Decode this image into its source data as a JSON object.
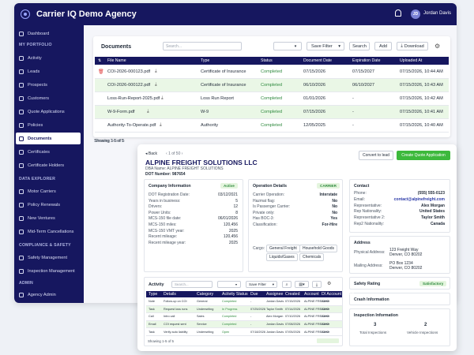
{
  "app": {
    "title": "Carrier IQ Demo Agency",
    "user_initials": "JD",
    "user_name": "Jordan Davis"
  },
  "sidebar": {
    "items_top": [
      {
        "label": "Dashboard"
      }
    ],
    "sec1": "MY PORTFOLIO",
    "portfolio": [
      {
        "label": "Activity"
      },
      {
        "label": "Leads"
      },
      {
        "label": "Prospects"
      },
      {
        "label": "Customers"
      },
      {
        "label": "Quote Applications"
      },
      {
        "label": "Policies"
      },
      {
        "label": "Documents"
      },
      {
        "label": "Certificates"
      },
      {
        "label": "Certificate Holders"
      }
    ],
    "sec2": "DATA EXPLORER",
    "explorer": [
      {
        "label": "Motor Carriers"
      },
      {
        "label": "Policy Renewals"
      },
      {
        "label": "New Ventures"
      },
      {
        "label": "Mid-Term Cancellations"
      }
    ],
    "sec3": "COMPLIANCE & SAFETY",
    "compliance": [
      {
        "label": "Safety Management"
      },
      {
        "label": "Inspection Management"
      }
    ],
    "sec4": "ADMIN",
    "admin": [
      {
        "label": "Agency Admin"
      }
    ]
  },
  "docs": {
    "title": "Documents",
    "search_placeholder": "Search...",
    "save_filter": "Save Filter",
    "search_btn": "Search",
    "add_btn": "Add",
    "download_btn": "Download",
    "columns": [
      "File Name",
      "Type",
      "Status",
      "Document Date",
      "Expiration Date",
      "Uploaded At"
    ],
    "rows": [
      {
        "name": "COI-2026-000123.pdf",
        "type": "Certificate of Insurance",
        "status": "Completed",
        "doc_date": "07/15/2026",
        "exp": "07/15/2027",
        "uploaded": "07/15/2026, 10:44 AM"
      },
      {
        "name": "COI-2026-000122.pdf",
        "type": "Certificate of Insurance",
        "status": "Completed",
        "doc_date": "06/10/2026",
        "exp": "06/10/2027",
        "uploaded": "07/15/2026, 10:43 AM"
      },
      {
        "name": "Loss-Run-Report-2025.pdf",
        "type": "Loss Run Report",
        "status": "Completed",
        "doc_date": "01/01/2026",
        "exp": "-",
        "uploaded": "07/15/2026, 10:42 AM"
      },
      {
        "name": "W-9-Form.pdf",
        "type": "W-9",
        "status": "Completed",
        "doc_date": "07/15/2026",
        "exp": "-",
        "uploaded": "07/15/2026, 10:41 AM"
      },
      {
        "name": "Authority-To-Operate.pdf",
        "type": "Authority",
        "status": "Completed",
        "doc_date": "12/05/2025",
        "exp": "-",
        "uploaded": "07/15/2026, 10:40 AM"
      }
    ],
    "footer": "Showing 1-5 of 5"
  },
  "detail": {
    "back": "Back",
    "pager": "1 of 50",
    "company": "ALPINE FREIGHT SOLUTIONS LLC",
    "dba": "DBA Name: ALPINE FREIGHT SOLUTIONS",
    "dot": "DOT Number: 987654",
    "convert_btn": "Convert to lead",
    "create_btn": "Create Quote Application",
    "company_info": {
      "title": "Company Information",
      "badge": "Active",
      "rows": [
        [
          "DOT Registration Date:",
          "03/12/2021"
        ],
        [
          "Years in business:",
          "5"
        ],
        [
          "Drivers:",
          "12"
        ],
        [
          "Power Units:",
          "8"
        ],
        [
          "MCS-150 file date:",
          "06/01/2026"
        ],
        [
          "MCS-150 miles:",
          "120,456"
        ],
        [
          "MCS-150 VMT year:",
          "2025"
        ],
        [
          "Recent mileage:",
          "120,456"
        ],
        [
          "Recent mileage year:",
          "2025"
        ]
      ]
    },
    "operation": {
      "title": "Operation Details",
      "badge": "CARRIER",
      "rows": [
        [
          "Carrier Operation:",
          "Interstate"
        ],
        [
          "Hazmat flag:",
          "No"
        ],
        [
          "Is Passenger Carrier:",
          "No"
        ],
        [
          "Private only:",
          "No"
        ],
        [
          "Has BOC-3:",
          "Yes"
        ],
        [
          "Classification:",
          "For-Hire"
        ]
      ],
      "cargo_label": "Cargo:",
      "cargo": [
        "General Freight",
        "Household Goods",
        "Liquids/Gases",
        "Chemicals"
      ]
    },
    "contact": {
      "title": "Contact",
      "rows": [
        [
          "Phone:",
          "(555) 555-0123"
        ],
        [
          "Email:",
          "contact@alpinefreight.com"
        ],
        [
          "Representative:",
          "Alex Morgan"
        ],
        [
          "Rep Nationality:",
          "United States"
        ],
        [
          "Representative 2:",
          "Taylor Smith"
        ],
        [
          "Rep2 Nationality:",
          "Canada"
        ]
      ]
    },
    "address": {
      "title": "Address",
      "physical_label": "Physical Address:",
      "physical": [
        "123 Freight Way",
        "Denver, CO 80202"
      ],
      "mailing_label": "Mailing Address:",
      "mailing": [
        "PO Box 1234",
        "Denver, CO 80202"
      ]
    },
    "safety": {
      "title": "Safety Rating",
      "badge": "Satisfactory"
    },
    "crash": {
      "title": "Crash Information"
    },
    "inspection": {
      "title": "Inspection Information",
      "total": "3",
      "total_label": "Total Inspections",
      "vehicle": "2",
      "vehicle_label": "Vehicle Inspections"
    },
    "activity": {
      "title": "Activity",
      "search_placeholder": "Search...",
      "save_filter": "Save Filter",
      "columns": [
        "Type",
        "Details",
        "Category",
        "Activity Status",
        "Due",
        "Assignee",
        "Created",
        "Account",
        "DI Account Status"
      ],
      "rows": [
        [
          "Note",
          "Follow-up on COI",
          "General",
          "Completed",
          "-",
          "Jordan Davis",
          "07/15/2026",
          "ALPINE FREIGHT",
          "Active"
        ],
        [
          "Task",
          "Request loss runs",
          "Underwriting",
          "In Progress",
          "07/25/2026",
          "Taylor Smith",
          "07/14/2026",
          "ALPINE FREIGHT",
          "Active"
        ],
        [
          "Call",
          "Intro call",
          "Sales",
          "Completed",
          "-",
          "Alex Morgan",
          "07/10/2026",
          "ALPINE FREIGHT",
          "Active"
        ],
        [
          "Email",
          "COI request sent",
          "Service",
          "Completed",
          "-",
          "Jordan Davis",
          "07/08/2026",
          "ALPINE FREIGHT",
          "Active"
        ],
        [
          "Task",
          "Verify auto liability",
          "Underwriting",
          "Open",
          "07/18/2026",
          "Jordan Davis",
          "07/05/2026",
          "ALPINE FREIGHT",
          "Active"
        ]
      ],
      "footer": "Showing 1-5 of 5"
    }
  }
}
